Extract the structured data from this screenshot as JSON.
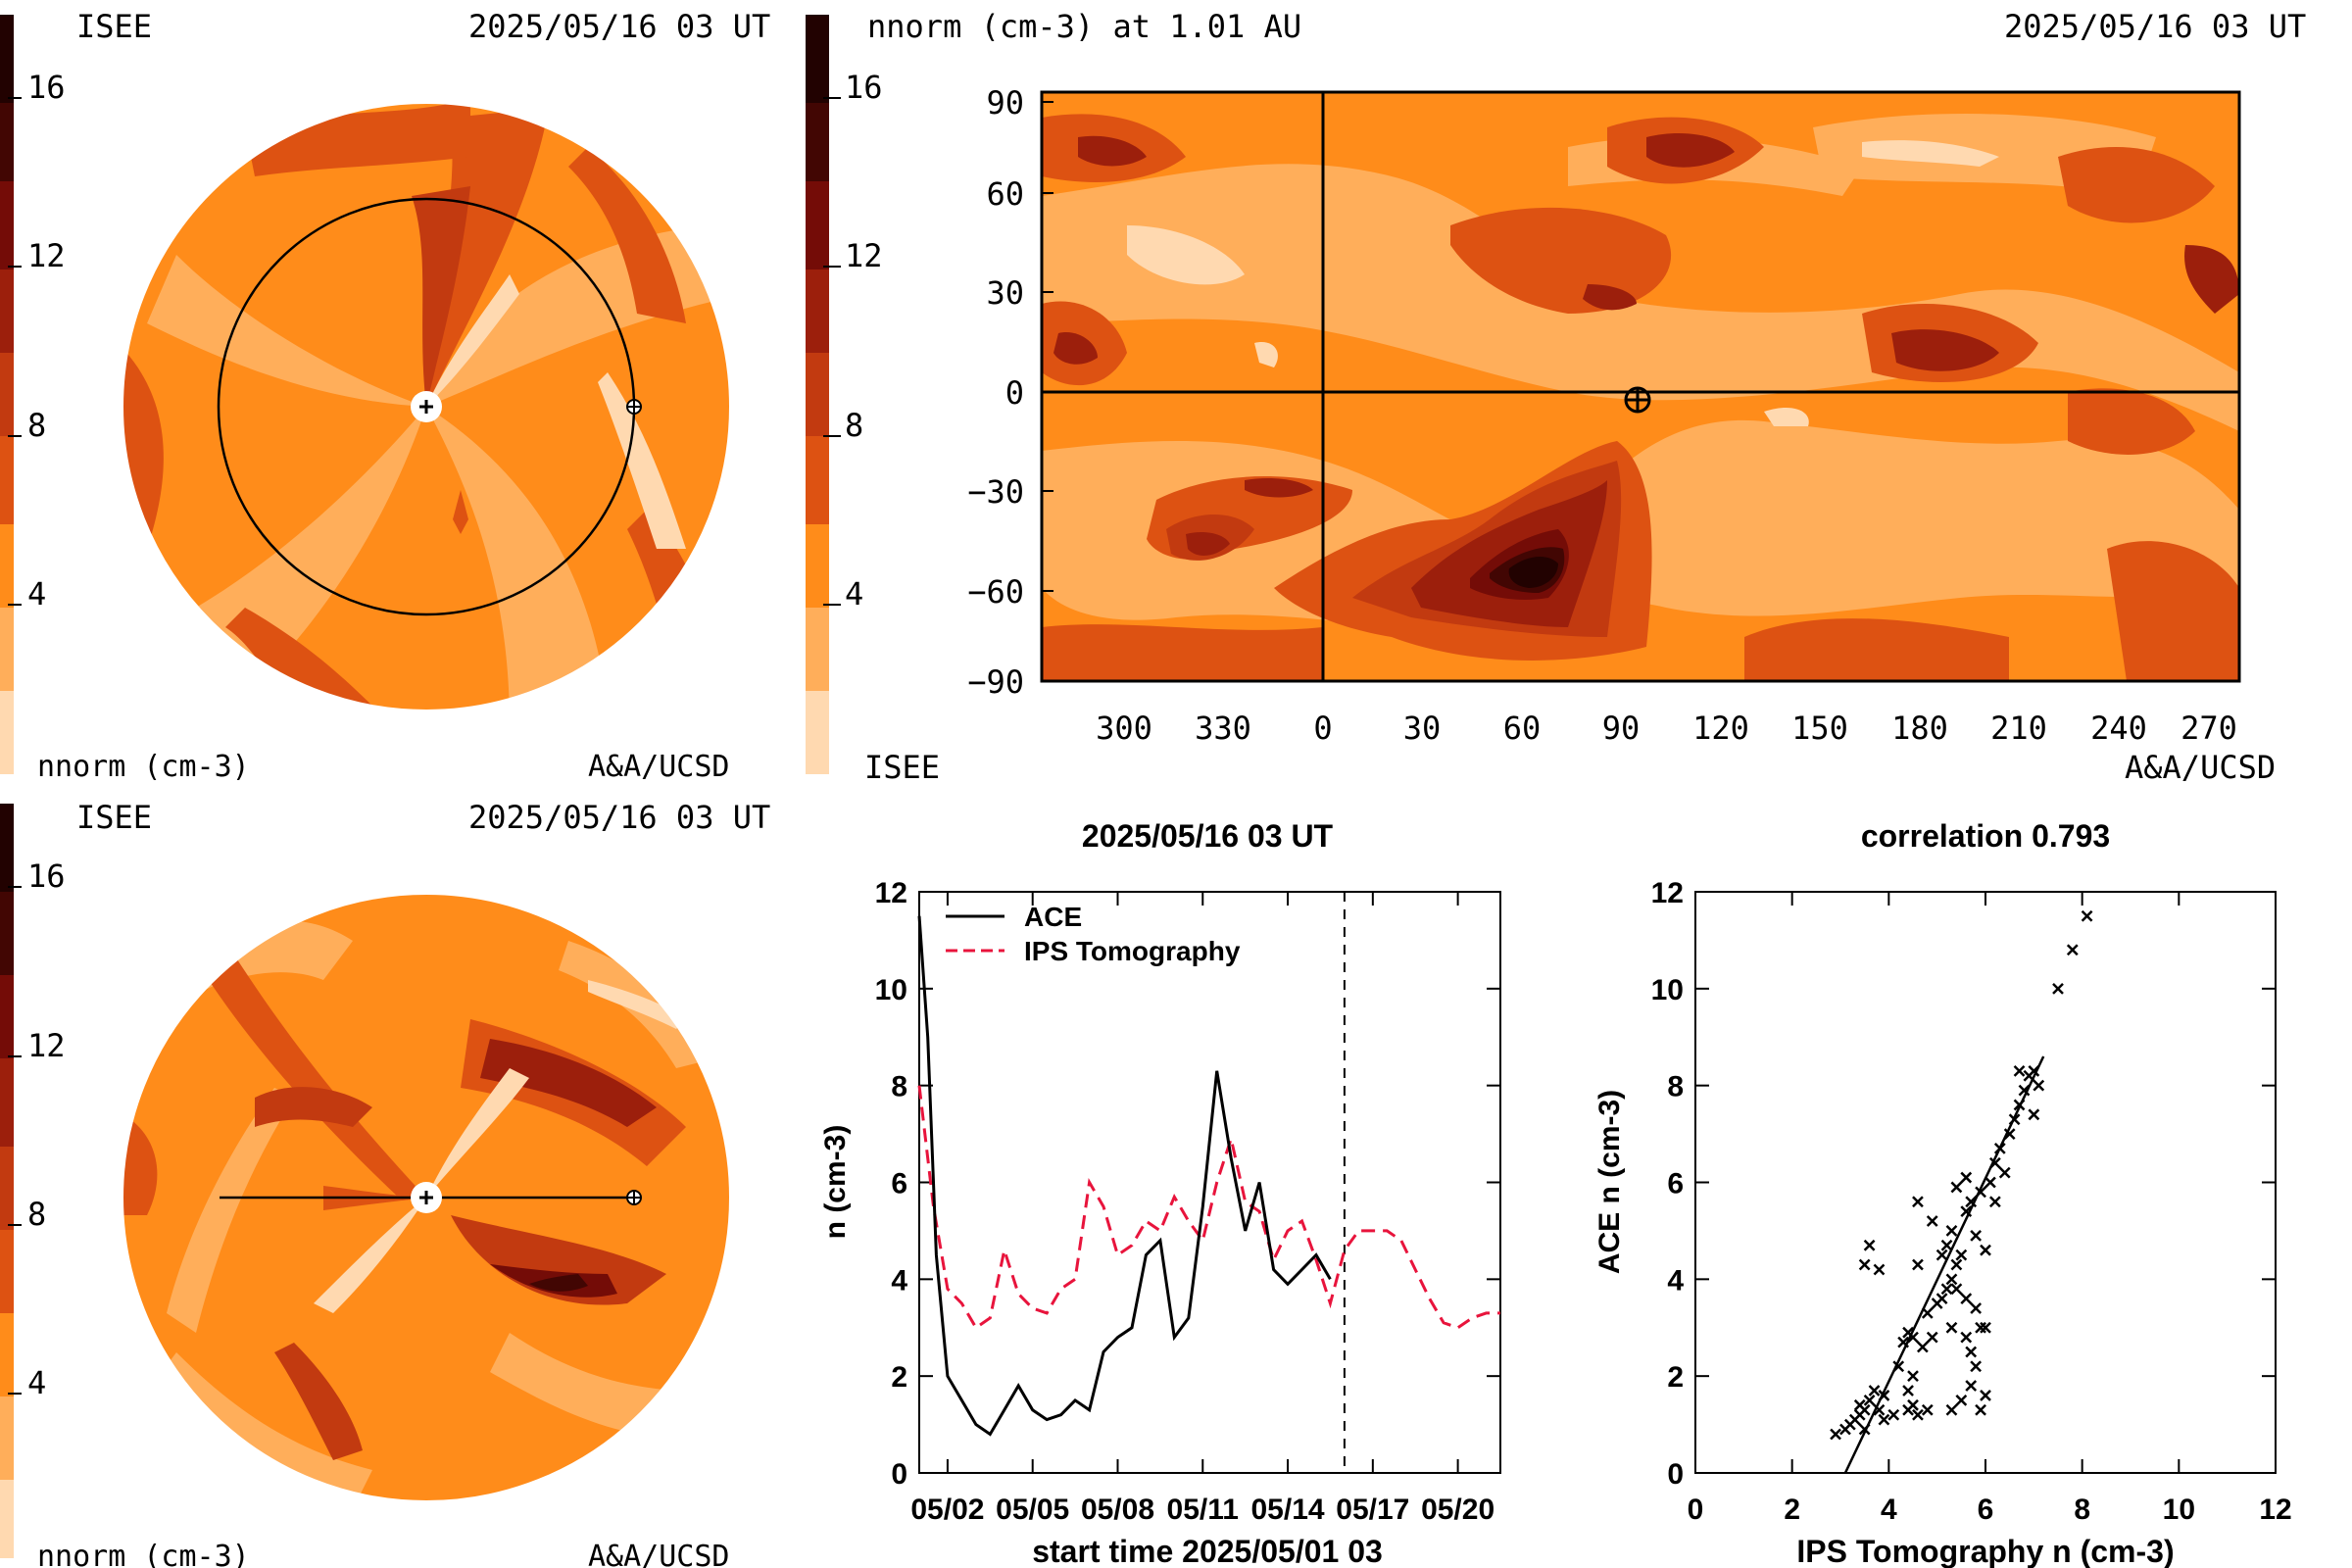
{
  "colors": {
    "levels": [
      "#ffd9b0",
      "#ffae5a",
      "#ff8c1a",
      "#f07415",
      "#dd5212",
      "#c23a10",
      "#9c1f0c",
      "#740c07",
      "#420603",
      "#220201"
    ],
    "ips_line": "#e8143c",
    "ace_line": "#000000",
    "background": "#ffffff"
  },
  "panel_top_left": {
    "org_label": "ISEE",
    "date_label": "2025/05/16 03 UT",
    "unit_label": "nnorm (cm-3)",
    "credit_label": "A&A/UCSD",
    "colorbar_ticks": [
      "16",
      "12",
      "8",
      "4"
    ]
  },
  "panel_bottom_left": {
    "org_label": "ISEE",
    "date_label": "2025/05/16 03 UT",
    "unit_label": "nnorm (cm-3)",
    "credit_label": "A&A/UCSD",
    "colorbar_ticks": [
      "16",
      "12",
      "8",
      "4"
    ]
  },
  "panel_map": {
    "title": "nnorm (cm-3) at 1.01 AU",
    "date_label": "2025/05/16 03 UT",
    "org_label": "ISEE",
    "credit_label": "A&A/UCSD",
    "colorbar_ticks": [
      "16",
      "12",
      "8",
      "4"
    ],
    "y_ticks": [
      "90",
      "60",
      "30",
      "0",
      "−30",
      "−60",
      "−90"
    ],
    "x_ticks": [
      "300",
      "330",
      "0",
      "30",
      "60",
      "90",
      "120",
      "150",
      "180",
      "210",
      "240",
      "270"
    ]
  },
  "chart_data": [
    {
      "type": "line",
      "title": "2025/05/16 03 UT",
      "xlabel": "start time 2025/05/01 03",
      "ylabel": "n (cm-3)",
      "ylim": [
        0,
        12
      ],
      "xlim_days": [
        0,
        20.5
      ],
      "x_tick_labels": [
        "05/02",
        "05/05",
        "05/08",
        "05/11",
        "05/14",
        "05/17",
        "05/20"
      ],
      "y_tick_labels": [
        "0",
        "2",
        "4",
        "6",
        "8",
        "10",
        "12"
      ],
      "vline_label_date": "05/16 03",
      "series": [
        {
          "name": "ACE",
          "x": [
            0,
            0.3,
            0.6,
            1.0,
            1.5,
            2.0,
            2.5,
            3.0,
            3.5,
            4.0,
            4.5,
            5.0,
            5.5,
            6.0,
            6.5,
            7.0,
            7.5,
            8.0,
            8.5,
            9.0,
            9.5,
            10.0,
            10.5,
            11.0,
            11.5,
            12.0,
            12.5,
            13.0,
            13.5,
            14.0,
            14.5
          ],
          "y": [
            11.5,
            9.0,
            4.5,
            2.0,
            1.5,
            1.0,
            0.8,
            1.3,
            1.8,
            1.3,
            1.1,
            1.2,
            1.5,
            1.3,
            2.5,
            2.8,
            3.0,
            4.5,
            4.8,
            2.8,
            3.2,
            5.5,
            8.3,
            6.5,
            5.0,
            6.0,
            4.2,
            3.9,
            4.2,
            4.5,
            4.0
          ]
        },
        {
          "name": "IPS Tomography",
          "x": [
            0,
            0.5,
            1.0,
            1.5,
            2.0,
            2.5,
            3.0,
            3.5,
            4.0,
            4.5,
            5.0,
            5.5,
            6.0,
            6.5,
            7.0,
            7.5,
            8.0,
            8.5,
            9.0,
            9.5,
            10.0,
            10.5,
            11.0,
            11.5,
            12.0,
            12.5,
            13.0,
            13.5,
            14.0,
            14.5,
            15.0,
            15.5,
            16.0,
            16.5,
            17.0,
            17.5,
            18.0,
            18.5,
            19.0,
            19.5,
            20.0,
            20.5
          ],
          "y": [
            8.0,
            5.5,
            3.8,
            3.5,
            3.0,
            3.2,
            4.6,
            3.7,
            3.4,
            3.3,
            3.8,
            4.0,
            6.0,
            5.5,
            4.5,
            4.7,
            5.2,
            5.0,
            5.7,
            5.2,
            4.8,
            6.0,
            6.9,
            5.6,
            5.4,
            4.4,
            5.0,
            5.2,
            4.4,
            3.5,
            4.6,
            5.0,
            5.0,
            5.0,
            4.8,
            4.2,
            3.6,
            3.1,
            3.0,
            3.2,
            3.3,
            3.3
          ]
        }
      ]
    },
    {
      "type": "scatter",
      "title": "correlation 0.793",
      "xlabel": "IPS Tomography n (cm-3)",
      "ylabel": "ACE n (cm-3)",
      "xlim": [
        0,
        12
      ],
      "ylim": [
        0,
        12
      ],
      "x_tick_labels": [
        "0",
        "2",
        "4",
        "6",
        "8",
        "10",
        "12"
      ],
      "y_tick_labels": [
        "0",
        "2",
        "4",
        "6",
        "8",
        "10",
        "12"
      ],
      "fit_line": [
        [
          3.1,
          0.0
        ],
        [
          7.2,
          8.6
        ]
      ],
      "points": [
        [
          2.9,
          0.8
        ],
        [
          3.1,
          0.9
        ],
        [
          3.2,
          1.0
        ],
        [
          3.3,
          1.1
        ],
        [
          3.4,
          1.2
        ],
        [
          3.5,
          1.3
        ],
        [
          3.6,
          1.5
        ],
        [
          3.7,
          1.7
        ],
        [
          3.4,
          1.4
        ],
        [
          3.8,
          1.3
        ],
        [
          3.5,
          0.9
        ],
        [
          3.9,
          1.1
        ],
        [
          4.1,
          1.2
        ],
        [
          4.4,
          1.3
        ],
        [
          4.5,
          1.4
        ],
        [
          4.6,
          1.2
        ],
        [
          3.9,
          1.6
        ],
        [
          4.4,
          1.7
        ],
        [
          3.6,
          4.7
        ],
        [
          3.8,
          4.2
        ],
        [
          3.5,
          4.3
        ],
        [
          4.3,
          2.7
        ],
        [
          4.4,
          2.9
        ],
        [
          4.5,
          2.8
        ],
        [
          4.7,
          2.6
        ],
        [
          4.9,
          2.8
        ],
        [
          4.8,
          3.3
        ],
        [
          5.0,
          3.5
        ],
        [
          5.1,
          3.6
        ],
        [
          5.2,
          3.8
        ],
        [
          5.3,
          4.0
        ],
        [
          5.4,
          4.3
        ],
        [
          5.1,
          4.5
        ],
        [
          5.2,
          4.7
        ],
        [
          5.5,
          4.5
        ],
        [
          5.4,
          3.8
        ],
        [
          5.6,
          3.6
        ],
        [
          5.8,
          3.4
        ],
        [
          5.9,
          3.0
        ],
        [
          6.0,
          3.0
        ],
        [
          5.3,
          3.0
        ],
        [
          5.6,
          2.8
        ],
        [
          5.7,
          2.5
        ],
        [
          5.8,
          2.2
        ],
        [
          5.5,
          1.5
        ],
        [
          5.7,
          1.8
        ],
        [
          6.0,
          1.6
        ],
        [
          5.9,
          1.3
        ],
        [
          5.3,
          1.3
        ],
        [
          4.8,
          1.3
        ],
        [
          5.6,
          5.4
        ],
        [
          5.7,
          5.6
        ],
        [
          5.9,
          5.8
        ],
        [
          6.1,
          6.0
        ],
        [
          6.2,
          6.4
        ],
        [
          6.3,
          6.7
        ],
        [
          6.5,
          7.0
        ],
        [
          6.6,
          7.3
        ],
        [
          6.7,
          7.6
        ],
        [
          6.8,
          7.9
        ],
        [
          6.9,
          8.2
        ],
        [
          7.0,
          8.3
        ],
        [
          6.7,
          8.3
        ],
        [
          7.1,
          8.0
        ],
        [
          7.0,
          7.4
        ],
        [
          6.4,
          6.2
        ],
        [
          6.2,
          5.6
        ],
        [
          5.6,
          6.1
        ],
        [
          5.4,
          5.9
        ],
        [
          4.9,
          5.2
        ],
        [
          4.6,
          5.6
        ],
        [
          5.3,
          5.0
        ],
        [
          5.8,
          4.9
        ],
        [
          6.0,
          4.6
        ],
        [
          4.6,
          4.3
        ],
        [
          7.5,
          10.0
        ],
        [
          7.8,
          10.8
        ],
        [
          8.1,
          11.5
        ],
        [
          4.2,
          2.2
        ],
        [
          4.5,
          2.0
        ]
      ]
    }
  ]
}
